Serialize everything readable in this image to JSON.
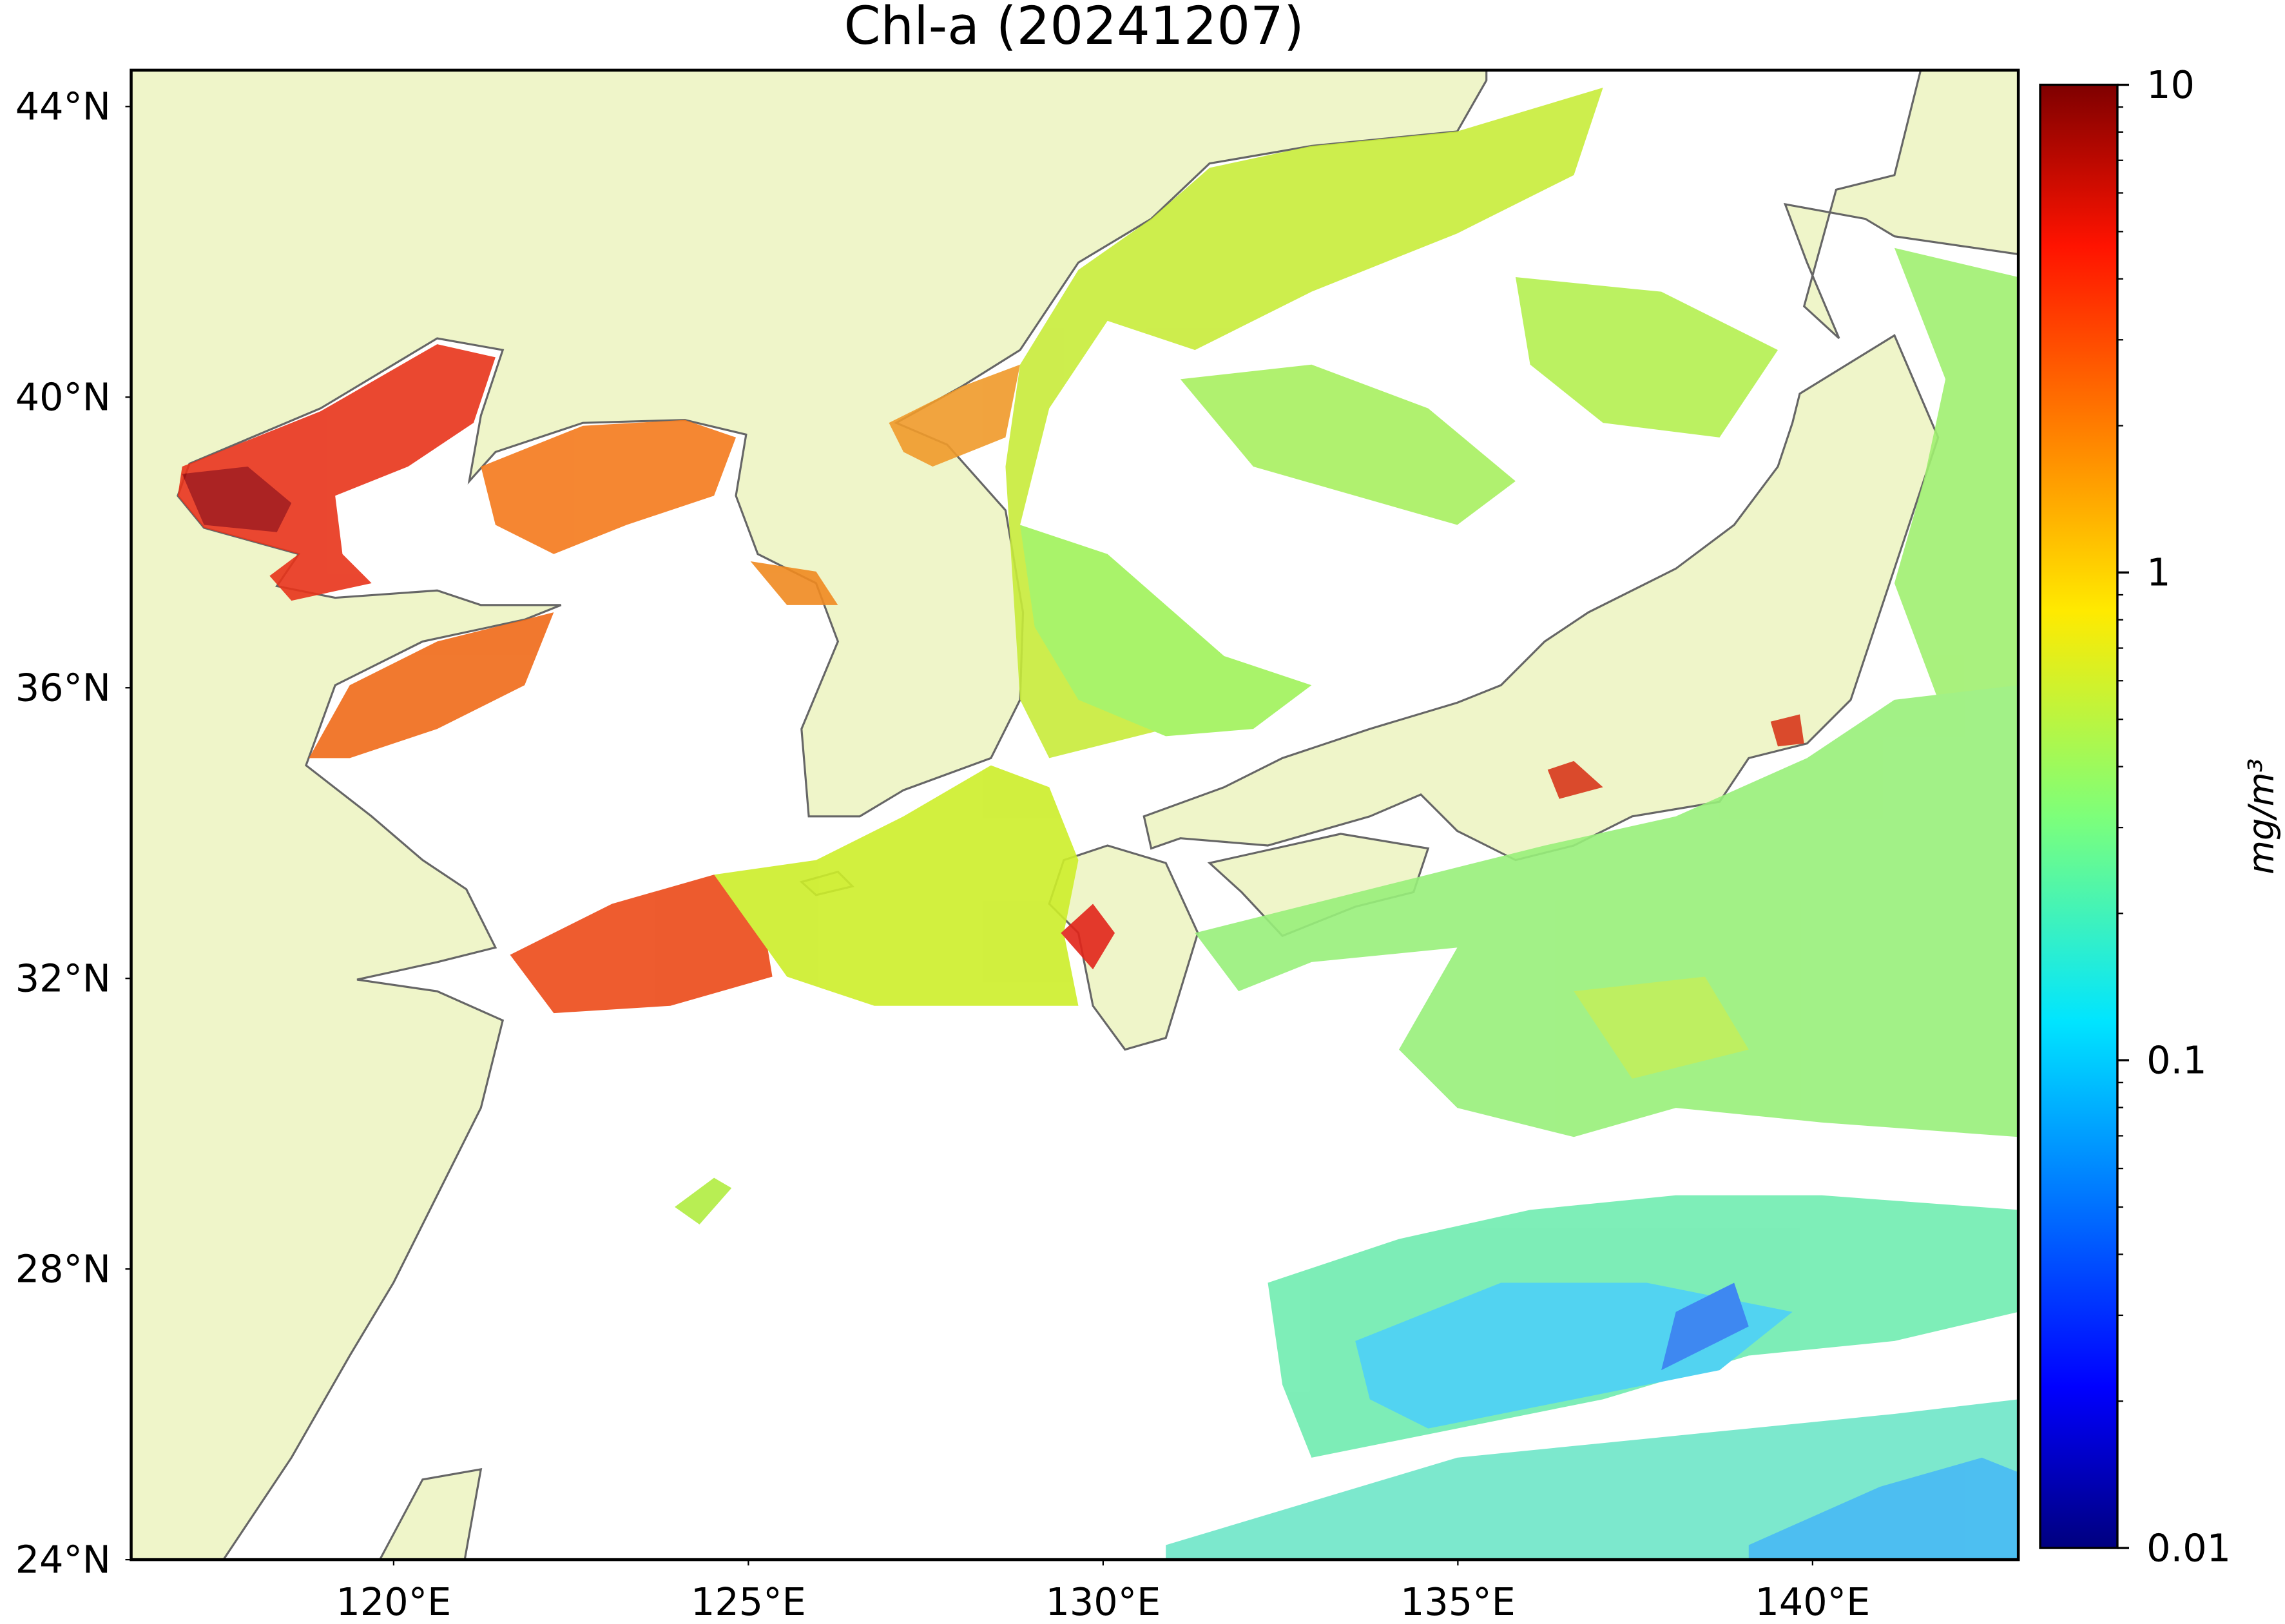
{
  "chart_data": {
    "type": "map",
    "title": "Chl-a (20241207)",
    "xlim": [
      116.3,
      142.9
    ],
    "ylim": [
      24,
      44.5
    ],
    "xticks": [
      {
        "value": 120,
        "label": "120°E"
      },
      {
        "value": 125,
        "label": "125°E"
      },
      {
        "value": 130,
        "label": "130°E"
      },
      {
        "value": 135,
        "label": "135°E"
      },
      {
        "value": 140,
        "label": "140°E"
      }
    ],
    "yticks": [
      {
        "value": 24,
        "label": "24°N"
      },
      {
        "value": 28,
        "label": "28°N"
      },
      {
        "value": 32,
        "label": "32°N"
      },
      {
        "value": 36,
        "label": "36°N"
      },
      {
        "value": 40,
        "label": "40°N"
      },
      {
        "value": 44,
        "label": "44°N"
      }
    ],
    "colorbar": {
      "label": "mg/m³",
      "scale": "log",
      "colormap": "jet",
      "lim": [
        0.01,
        10
      ],
      "ticks": [
        0.01,
        0.1,
        1,
        10
      ],
      "minor_ticks": [
        0.02,
        0.03,
        0.04,
        0.05,
        0.06,
        0.07,
        0.08,
        0.09,
        0.2,
        0.3,
        0.4,
        0.5,
        0.6,
        0.7,
        0.8,
        0.9,
        2,
        3,
        4,
        5,
        6,
        7,
        8,
        9
      ]
    }
  }
}
